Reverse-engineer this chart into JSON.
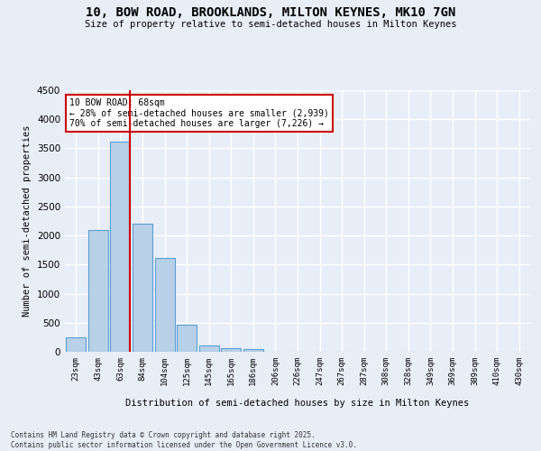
{
  "title_line1": "10, BOW ROAD, BROOKLANDS, MILTON KEYNES, MK10 7GN",
  "title_line2": "Size of property relative to semi-detached houses in Milton Keynes",
  "xlabel": "Distribution of semi-detached houses by size in Milton Keynes",
  "ylabel": "Number of semi-detached properties",
  "categories": [
    "23sqm",
    "43sqm",
    "63sqm",
    "84sqm",
    "104sqm",
    "125sqm",
    "145sqm",
    "165sqm",
    "186sqm",
    "206sqm",
    "226sqm",
    "247sqm",
    "267sqm",
    "287sqm",
    "308sqm",
    "328sqm",
    "349sqm",
    "369sqm",
    "389sqm",
    "410sqm",
    "430sqm"
  ],
  "values": [
    250,
    2100,
    3620,
    2200,
    1620,
    460,
    110,
    60,
    45,
    0,
    0,
    0,
    0,
    0,
    0,
    0,
    0,
    0,
    0,
    0,
    0
  ],
  "bar_color": "#b8d0e8",
  "bar_edge_color": "#5a9fd4",
  "redline_index": 2,
  "annotation_title": "10 BOW ROAD: 68sqm",
  "annotation_line1": "← 28% of semi-detached houses are smaller (2,939)",
  "annotation_line2": "70% of semi-detached houses are larger (7,226) →",
  "annotation_box_color": "#ffffff",
  "annotation_box_edge": "#cc0000",
  "redline_color": "#cc0000",
  "ylim": [
    0,
    4500
  ],
  "yticks": [
    0,
    500,
    1000,
    1500,
    2000,
    2500,
    3000,
    3500,
    4000,
    4500
  ],
  "background_color": "#e8eef8",
  "grid_color": "#ffffff",
  "footer_line1": "Contains HM Land Registry data © Crown copyright and database right 2025.",
  "footer_line2": "Contains public sector information licensed under the Open Government Licence v3.0."
}
